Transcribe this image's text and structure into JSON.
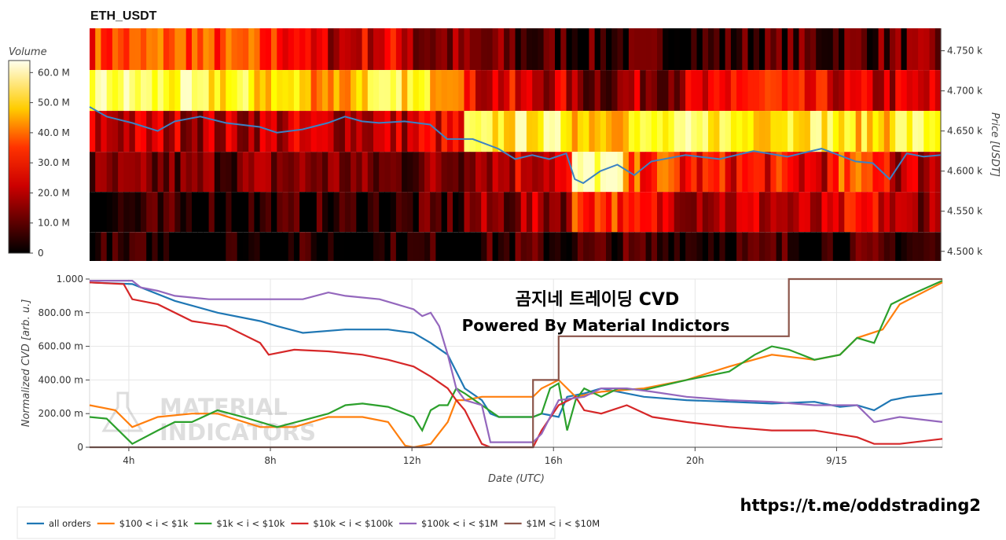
{
  "title": "ETH_USDT",
  "watermark": {
    "line1": "곰지네 트레이딩 CVD",
    "line2": "Powered By Material Indictors",
    "logo_line1": "MATERIAL",
    "logo_line2": "INDICATORS"
  },
  "link": "https://t.me/oddstrading2",
  "colors": {
    "all_orders": "#1f77b4",
    "b100_1k": "#ff7f0e",
    "b1k_10k": "#2ca02c",
    "b10k_100k": "#d62728",
    "b100k_1M": "#9467bd",
    "b1M_10M": "#8c564b",
    "price_line": "#3b82c4"
  },
  "chart_data": [
    {
      "type": "heatmap",
      "title": "ETH_USDT",
      "colorbar": {
        "label": "Volume",
        "range": [
          0,
          64
        ],
        "ticks": [
          "60.0 M",
          "50.0 M",
          "40.0 M",
          "30.0 M",
          "20.0 M",
          "10.0 M",
          "0"
        ],
        "tick_values": [
          60,
          50,
          40,
          30,
          20,
          10,
          0
        ],
        "colormap": "hot"
      },
      "ylabel": "Price [USDT]",
      "yticks": [
        "4.750 k",
        "4.700 k",
        "4.650 k",
        "4.600 k",
        "4.550 k",
        "4.500 k"
      ],
      "ytick_values": [
        4750,
        4700,
        4650,
        4600,
        4550,
        4500
      ],
      "ylim": [
        4488,
        4778
      ],
      "bands": [
        {
          "low": 4726,
          "high": 4778,
          "intensity": [
            0.5,
            0.55,
            0.5,
            0.45,
            0.3,
            0.35,
            0.2,
            0.15,
            0.1,
            0.08,
            0.08,
            0.08,
            0.1,
            0.12,
            0.15,
            0.15
          ]
        },
        {
          "low": 4675,
          "high": 4726,
          "intensity": [
            0.9,
            0.85,
            0.8,
            0.75,
            0.65,
            0.8,
            0.75,
            0.35,
            0.3,
            0.2,
            0.25,
            0.3,
            0.45,
            0.35,
            0.3,
            0.3
          ]
        },
        {
          "low": 4624,
          "high": 4675,
          "intensity": [
            0.3,
            0.3,
            0.28,
            0.3,
            0.3,
            0.3,
            0.35,
            0.8,
            0.85,
            0.75,
            0.8,
            0.85,
            0.8,
            0.85,
            0.75,
            0.85
          ]
        },
        {
          "low": 4574,
          "high": 4624,
          "intensity": [
            0.15,
            0.15,
            0.18,
            0.2,
            0.2,
            0.15,
            0.2,
            0.3,
            0.35,
            0.95,
            0.5,
            0.4,
            0.4,
            0.35,
            0.5,
            0.3
          ]
        },
        {
          "low": 4524,
          "high": 4574,
          "intensity": [
            0.05,
            0.05,
            0.05,
            0.05,
            0.05,
            0.05,
            0.08,
            0.2,
            0.25,
            0.5,
            0.35,
            0.3,
            0.3,
            0.25,
            0.35,
            0.25
          ]
        },
        {
          "low": 4488,
          "high": 4524,
          "intensity": [
            0.02,
            0.02,
            0.02,
            0.02,
            0.02,
            0.02,
            0.03,
            0.06,
            0.08,
            0.08,
            0.08,
            0.08,
            0.08,
            0.08,
            0.08,
            0.08
          ]
        }
      ],
      "price_series": {
        "x": [
          0,
          0.02,
          0.05,
          0.08,
          0.1,
          0.13,
          0.16,
          0.2,
          0.22,
          0.25,
          0.28,
          0.3,
          0.32,
          0.34,
          0.37,
          0.4,
          0.42,
          0.45,
          0.48,
          0.5,
          0.52,
          0.54,
          0.56,
          0.57,
          0.58,
          0.6,
          0.62,
          0.64,
          0.66,
          0.7,
          0.74,
          0.78,
          0.82,
          0.86,
          0.9,
          0.92,
          0.94,
          0.96,
          0.98,
          1.0
        ],
        "y": [
          4680,
          4668,
          4660,
          4650,
          4662,
          4668,
          4660,
          4655,
          4648,
          4652,
          4660,
          4668,
          4662,
          4660,
          4662,
          4658,
          4640,
          4640,
          4628,
          4615,
          4620,
          4615,
          4622,
          4590,
          4585,
          4600,
          4608,
          4595,
          4612,
          4620,
          4615,
          4625,
          4618,
          4628,
          4612,
          4610,
          4590,
          4622,
          4618,
          4620
        ]
      }
    },
    {
      "type": "line",
      "xlabel": "Date (UTC)",
      "ylabel": "Normalized CVD [arb. u.]",
      "ylim": [
        0,
        1.0
      ],
      "yticks": [
        "1.000",
        "800.00 m",
        "600.00 m",
        "400.00 m",
        "200.00 m",
        "0"
      ],
      "ytick_values": [
        1.0,
        0.8,
        0.6,
        0.4,
        0.2,
        0
      ],
      "xticks": [
        "4h",
        "8h",
        "12h",
        "16h",
        "20h",
        "9/15"
      ],
      "xtick_values": [
        0.046,
        0.212,
        0.378,
        0.544,
        0.71,
        0.876
      ],
      "series": [
        {
          "name": "all orders",
          "color_key": "all_orders",
          "x": [
            0,
            0.05,
            0.1,
            0.15,
            0.2,
            0.22,
            0.25,
            0.3,
            0.35,
            0.38,
            0.4,
            0.42,
            0.44,
            0.46,
            0.47,
            0.48,
            0.5,
            0.52,
            0.53,
            0.55,
            0.56,
            0.58,
            0.6,
            0.62,
            0.65,
            0.7,
            0.75,
            0.8,
            0.85,
            0.88,
            0.9,
            0.92,
            0.94,
            0.96,
            1.0
          ],
          "y": [
            0.98,
            0.97,
            0.87,
            0.8,
            0.75,
            0.72,
            0.68,
            0.7,
            0.7,
            0.68,
            0.62,
            0.55,
            0.35,
            0.28,
            0.2,
            0.18,
            0.18,
            0.18,
            0.2,
            0.18,
            0.3,
            0.32,
            0.35,
            0.33,
            0.3,
            0.28,
            0.27,
            0.26,
            0.27,
            0.24,
            0.25,
            0.22,
            0.28,
            0.3,
            0.32
          ]
        },
        {
          "name": "$100 < i < $1k",
          "color_key": "b100_1k",
          "x": [
            0,
            0.03,
            0.05,
            0.08,
            0.12,
            0.15,
            0.2,
            0.24,
            0.28,
            0.32,
            0.35,
            0.36,
            0.37,
            0.38,
            0.4,
            0.42,
            0.43,
            0.44,
            0.46,
            0.48,
            0.5,
            0.52,
            0.53,
            0.55,
            0.57,
            0.6,
            0.65,
            0.7,
            0.75,
            0.8,
            0.85,
            0.88,
            0.9,
            0.93,
            0.95,
            1.0
          ],
          "y": [
            0.25,
            0.22,
            0.12,
            0.18,
            0.2,
            0.2,
            0.12,
            0.12,
            0.18,
            0.18,
            0.15,
            0.08,
            0.01,
            0.0,
            0.02,
            0.15,
            0.28,
            0.28,
            0.3,
            0.3,
            0.3,
            0.3,
            0.35,
            0.4,
            0.3,
            0.33,
            0.35,
            0.4,
            0.48,
            0.55,
            0.52,
            0.55,
            0.65,
            0.7,
            0.85,
            0.98
          ]
        },
        {
          "name": "$1k < i < $10k",
          "color_key": "b1k_10k",
          "x": [
            0,
            0.02,
            0.03,
            0.05,
            0.08,
            0.1,
            0.12,
            0.15,
            0.18,
            0.2,
            0.22,
            0.25,
            0.28,
            0.3,
            0.32,
            0.35,
            0.37,
            0.38,
            0.39,
            0.4,
            0.41,
            0.42,
            0.43,
            0.44,
            0.46,
            0.48,
            0.5,
            0.52,
            0.53,
            0.54,
            0.55,
            0.56,
            0.57,
            0.58,
            0.6,
            0.62,
            0.65,
            0.7,
            0.75,
            0.78,
            0.8,
            0.82,
            0.85,
            0.88,
            0.9,
            0.92,
            0.94,
            0.96,
            1.0
          ],
          "y": [
            0.18,
            0.17,
            0.12,
            0.02,
            0.1,
            0.15,
            0.15,
            0.22,
            0.18,
            0.15,
            0.12,
            0.16,
            0.2,
            0.25,
            0.26,
            0.24,
            0.2,
            0.18,
            0.1,
            0.22,
            0.25,
            0.25,
            0.35,
            0.32,
            0.25,
            0.18,
            0.18,
            0.18,
            0.2,
            0.35,
            0.38,
            0.1,
            0.28,
            0.35,
            0.3,
            0.35,
            0.34,
            0.4,
            0.45,
            0.55,
            0.6,
            0.58,
            0.52,
            0.55,
            0.65,
            0.62,
            0.85,
            0.9,
            0.99
          ]
        },
        {
          "name": "$10k < i < $100k",
          "color_key": "b10k_100k",
          "x": [
            0,
            0.04,
            0.05,
            0.08,
            0.12,
            0.16,
            0.2,
            0.21,
            0.24,
            0.28,
            0.32,
            0.35,
            0.38,
            0.4,
            0.42,
            0.43,
            0.44,
            0.46,
            0.47,
            0.5,
            0.52,
            0.53,
            0.55,
            0.57,
            0.58,
            0.6,
            0.63,
            0.66,
            0.7,
            0.75,
            0.8,
            0.85,
            0.9,
            0.92,
            0.95,
            1.0
          ],
          "y": [
            0.98,
            0.97,
            0.88,
            0.85,
            0.75,
            0.72,
            0.62,
            0.55,
            0.58,
            0.57,
            0.55,
            0.52,
            0.48,
            0.42,
            0.35,
            0.28,
            0.22,
            0.02,
            0.0,
            0.0,
            0.0,
            0.1,
            0.25,
            0.3,
            0.22,
            0.2,
            0.25,
            0.18,
            0.15,
            0.12,
            0.1,
            0.1,
            0.06,
            0.02,
            0.02,
            0.05
          ]
        },
        {
          "name": "$100k < i < $1M",
          "color_key": "b100k_1M",
          "x": [
            0,
            0.05,
            0.06,
            0.08,
            0.1,
            0.14,
            0.18,
            0.2,
            0.25,
            0.28,
            0.3,
            0.34,
            0.36,
            0.38,
            0.39,
            0.4,
            0.41,
            0.42,
            0.43,
            0.44,
            0.46,
            0.47,
            0.5,
            0.52,
            0.53,
            0.55,
            0.58,
            0.6,
            0.63,
            0.66,
            0.7,
            0.75,
            0.8,
            0.85,
            0.9,
            0.92,
            0.95,
            1.0
          ],
          "y": [
            0.99,
            0.99,
            0.95,
            0.93,
            0.9,
            0.88,
            0.88,
            0.88,
            0.88,
            0.92,
            0.9,
            0.88,
            0.85,
            0.82,
            0.78,
            0.8,
            0.72,
            0.55,
            0.35,
            0.28,
            0.25,
            0.03,
            0.03,
            0.03,
            0.08,
            0.28,
            0.3,
            0.35,
            0.35,
            0.33,
            0.3,
            0.28,
            0.27,
            0.25,
            0.25,
            0.15,
            0.18,
            0.15
          ]
        },
        {
          "name": "$1M < i < $10M",
          "color_key": "b1M_10M",
          "x": [
            0,
            0.52,
            0.52,
            0.55,
            0.55,
            0.56,
            0.75,
            0.82,
            0.82,
            1.0
          ],
          "y": [
            0.0,
            0.0,
            0.4,
            0.4,
            0.66,
            0.66,
            0.66,
            0.66,
            1.0,
            1.0
          ]
        }
      ]
    }
  ]
}
